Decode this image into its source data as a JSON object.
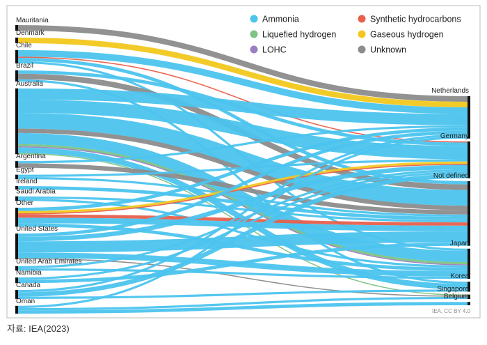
{
  "chart_data": {
    "type": "sankey",
    "source": "IEA, CC BY 4.0",
    "caption": "자료: IEA(2023)",
    "carriers": [
      {
        "name": "Ammonia",
        "color": "#4cc4ee"
      },
      {
        "name": "Synthetic hydrocarbons",
        "color": "#e8604c"
      },
      {
        "name": "Liquefied hydrogen",
        "color": "#7dc383"
      },
      {
        "name": "Gaseous hydrogen",
        "color": "#f2c81e"
      },
      {
        "name": "LOHC",
        "color": "#9b7fc3"
      },
      {
        "name": "Unknown",
        "color": "#8c8c8c"
      }
    ],
    "sources": [
      "Mauritania",
      "Denmark",
      "Chile",
      "Brazil",
      "Australia",
      "Argentina",
      "Egypt",
      "Ireland",
      "Saudi Arabia",
      "Other",
      "United States",
      "United Arab Emirates",
      "Namibia",
      "Canada",
      "Oman"
    ],
    "targets": [
      "Netherlands",
      "Germany",
      "Not defined",
      "Japan",
      "Korea",
      "Singapore",
      "Belgium"
    ],
    "links": [
      {
        "source": "Mauritania",
        "target": "Netherlands",
        "carrier": "Unknown",
        "value": 5
      },
      {
        "source": "Denmark",
        "target": "Netherlands",
        "carrier": "Gaseous hydrogen",
        "value": 5
      },
      {
        "source": "Chile",
        "target": "Netherlands",
        "carrier": "Ammonia",
        "value": 6
      },
      {
        "source": "Chile",
        "target": "Germany",
        "carrier": "Synthetic hydrocarbons",
        "value": 1
      },
      {
        "source": "Chile",
        "target": "Not defined",
        "carrier": "Ammonia",
        "value": 3
      },
      {
        "source": "Chile",
        "target": "Japan",
        "carrier": "Ammonia",
        "value": 2
      },
      {
        "source": "Brazil",
        "target": "Germany",
        "carrier": "Ammonia",
        "value": 3
      },
      {
        "source": "Brazil",
        "target": "Not defined",
        "carrier": "Unknown",
        "value": 5
      },
      {
        "source": "Brazil",
        "target": "Korea",
        "carrier": "Ammonia",
        "value": 2
      },
      {
        "source": "Australia",
        "target": "Netherlands",
        "carrier": "Ammonia",
        "value": 10
      },
      {
        "source": "Australia",
        "target": "Germany",
        "carrier": "Ammonia",
        "value": 12
      },
      {
        "source": "Australia",
        "target": "Not defined",
        "carrier": "Ammonia",
        "value": 14
      },
      {
        "source": "Australia",
        "target": "Not defined",
        "carrier": "Unknown",
        "value": 4
      },
      {
        "source": "Australia",
        "target": "Japan",
        "carrier": "Ammonia",
        "value": 10
      },
      {
        "source": "Australia",
        "target": "Japan",
        "carrier": "Liquefied hydrogen",
        "value": 2
      },
      {
        "source": "Australia",
        "target": "Japan",
        "carrier": "LOHC",
        "value": 1
      },
      {
        "source": "Australia",
        "target": "Korea",
        "carrier": "Ammonia",
        "value": 5
      },
      {
        "source": "Australia",
        "target": "Singapore",
        "carrier": "Liquefied hydrogen",
        "value": 1
      },
      {
        "source": "Argentina",
        "target": "Netherlands",
        "carrier": "Ammonia",
        "value": 2
      },
      {
        "source": "Argentina",
        "target": "Not defined",
        "carrier": "Unknown",
        "value": 4
      },
      {
        "source": "Egypt",
        "target": "Germany",
        "carrier": "Ammonia",
        "value": 2
      },
      {
        "source": "Egypt",
        "target": "Not defined",
        "carrier": "Ammonia",
        "value": 2
      },
      {
        "source": "Ireland",
        "target": "Not defined",
        "carrier": "Ammonia",
        "value": 3
      },
      {
        "source": "Saudi Arabia",
        "target": "Not defined",
        "carrier": "Ammonia",
        "value": 2
      },
      {
        "source": "Saudi Arabia",
        "target": "Japan",
        "carrier": "Ammonia",
        "value": 2
      },
      {
        "source": "Other",
        "target": "Netherlands",
        "carrier": "Ammonia",
        "value": 3
      },
      {
        "source": "Other",
        "target": "Germany",
        "carrier": "Gaseous hydrogen",
        "value": 2
      },
      {
        "source": "Other",
        "target": "Germany",
        "carrier": "Synthetic hydrocarbons",
        "value": 1
      },
      {
        "source": "Other",
        "target": "Not defined",
        "carrier": "Synthetic hydrocarbons",
        "value": 3
      },
      {
        "source": "Other",
        "target": "Not defined",
        "carrier": "Ammonia",
        "value": 5
      },
      {
        "source": "Other",
        "target": "Japan",
        "carrier": "Ammonia",
        "value": 3
      },
      {
        "source": "United States",
        "target": "Netherlands",
        "carrier": "Ammonia",
        "value": 3
      },
      {
        "source": "United States",
        "target": "Germany",
        "carrier": "Ammonia",
        "value": 4
      },
      {
        "source": "United States",
        "target": "Not defined",
        "carrier": "Ammonia",
        "value": 10
      },
      {
        "source": "United States",
        "target": "Japan",
        "carrier": "Ammonia",
        "value": 5
      },
      {
        "source": "United States",
        "target": "Singapore",
        "carrier": "Unknown",
        "value": 1
      },
      {
        "source": "United Arab Emirates",
        "target": "Germany",
        "carrier": "Ammonia",
        "value": 2
      },
      {
        "source": "United Arab Emirates",
        "target": "Japan",
        "carrier": "Ammonia",
        "value": 2
      },
      {
        "source": "Namibia",
        "target": "Germany",
        "carrier": "Ammonia",
        "value": 2
      },
      {
        "source": "Namibia",
        "target": "Not defined",
        "carrier": "Ammonia",
        "value": 3
      },
      {
        "source": "Canada",
        "target": "Netherlands",
        "carrier": "Ammonia",
        "value": 2
      },
      {
        "source": "Canada",
        "target": "Germany",
        "carrier": "Ammonia",
        "value": 4
      },
      {
        "source": "Canada",
        "target": "Korea",
        "carrier": "Ammonia",
        "value": 2
      },
      {
        "source": "Oman",
        "target": "Netherlands",
        "carrier": "Ammonia",
        "value": 2
      },
      {
        "source": "Oman",
        "target": "Singapore",
        "carrier": "Ammonia",
        "value": 2
      },
      {
        "source": "Oman",
        "target": "Belgium",
        "carrier": "Ammonia",
        "value": 3
      }
    ]
  }
}
